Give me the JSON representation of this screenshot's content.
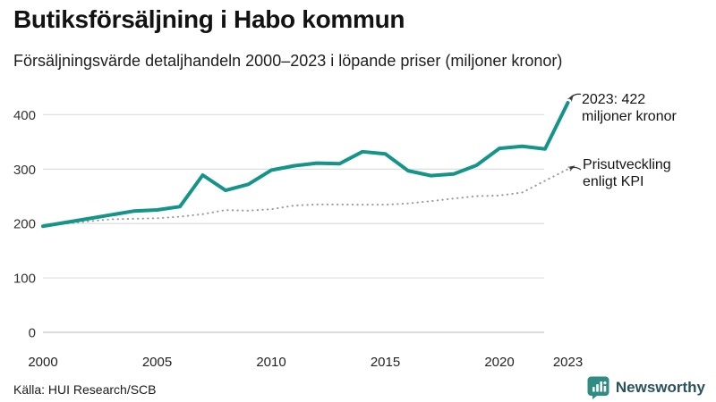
{
  "header": {
    "title": "Butiksförsäljning i Habo kommun",
    "subtitle": "Försäljningsvärde detaljhandeln 2000–2023 i löpande priser (miljoner kronor)"
  },
  "annotations": [
    {
      "line1": "2023: 422",
      "line2": "miljoner kronor"
    },
    {
      "line1": "Prisutveckling",
      "line2": "enligt KPI"
    }
  ],
  "footer": {
    "source": "Källa: HUI Research/SCB",
    "brand": "Newsworthy"
  },
  "colors": {
    "sales_line": "#15948a",
    "kpi_line": "#999999",
    "grid": "#e0e0e0",
    "zero_line": "#c6c6c6",
    "tick_label": "#333333",
    "arrow": "#3a3a3a",
    "brand_teal": "#2e8c82",
    "brand_text": "#29525c"
  },
  "chart_data": {
    "type": "line",
    "title": "Butiksförsäljning i Habo kommun",
    "subtitle": "Försäljningsvärde detaljhandeln 2000–2023 i löpande priser (miljoner kronor)",
    "x": [
      2000,
      2001,
      2002,
      2003,
      2004,
      2005,
      2006,
      2007,
      2008,
      2009,
      2010,
      2011,
      2012,
      2013,
      2014,
      2015,
      2016,
      2017,
      2018,
      2019,
      2020,
      2021,
      2022,
      2023
    ],
    "series": [
      {
        "name": "Försäljningsvärde i löpande priser",
        "values": [
          195,
          202,
          209,
          216,
          223,
          225,
          231,
          289,
          261,
          272,
          298,
          306,
          311,
          310,
          332,
          328,
          297,
          288,
          291,
          307,
          338,
          342,
          337,
          422
        ]
      },
      {
        "name": "Prisutveckling enligt KPI",
        "values": [
          195,
          199.7,
          204,
          207.9,
          208.7,
          209.7,
          212.5,
          217.2,
          224.7,
          223.6,
          226.3,
          233,
          235.1,
          235,
          234.6,
          234.6,
          236.9,
          241.1,
          245.9,
          250.3,
          251.5,
          257,
          278.6,
          300
        ]
      }
    ],
    "highlight": {
      "year": 2023,
      "value": 422
    },
    "ylim": [
      0,
      430
    ],
    "yticks": [
      0,
      100,
      200,
      300,
      400
    ],
    "xticks": [
      2000,
      2005,
      2010,
      2015,
      2020,
      2023
    ],
    "grid": "horizontal",
    "legend": "annotations",
    "source": "HUI Research/SCB"
  }
}
